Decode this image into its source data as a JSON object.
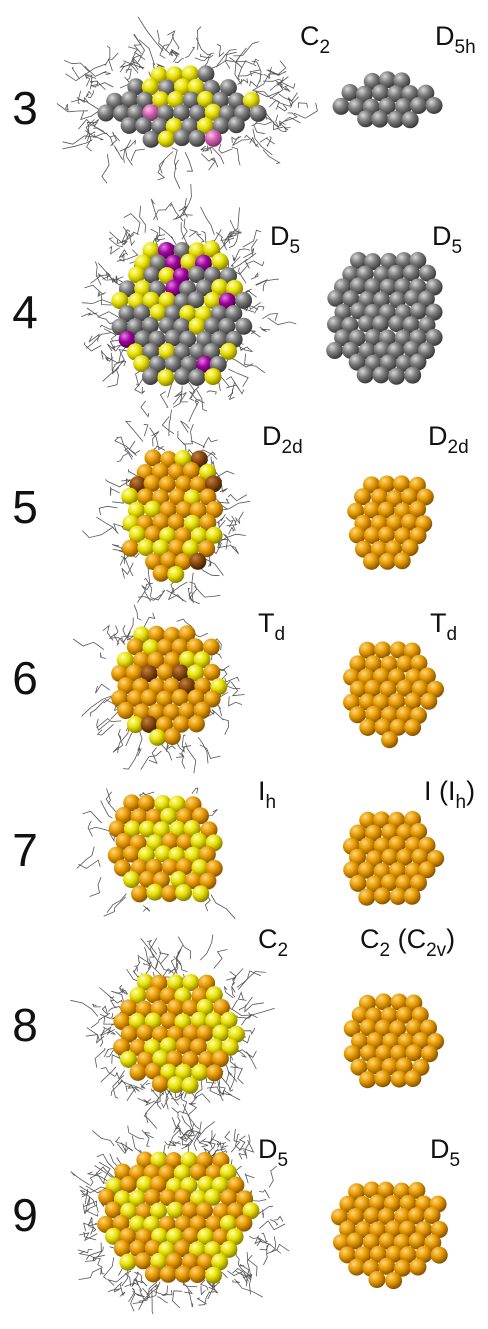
{
  "rows": [
    {
      "number": "3",
      "left": [
        {
          "text": "C"
        },
        {
          "sub": "2"
        }
      ],
      "right": [
        {
          "text": "D"
        },
        {
          "sub": "5h"
        }
      ]
    },
    {
      "number": "4",
      "left": [
        {
          "text": "D"
        },
        {
          "sub": "5"
        }
      ],
      "right": [
        {
          "text": "D"
        },
        {
          "sub": "5"
        }
      ]
    },
    {
      "number": "5",
      "left": [
        {
          "text": "D"
        },
        {
          "sub": "2d"
        }
      ],
      "right": [
        {
          "text": "D"
        },
        {
          "sub": "2d"
        }
      ]
    },
    {
      "number": "6",
      "left": [
        {
          "text": "T"
        },
        {
          "sub": "d"
        }
      ],
      "right": [
        {
          "text": "T"
        },
        {
          "sub": "d"
        }
      ]
    },
    {
      "number": "7",
      "left": [
        {
          "text": "I"
        },
        {
          "sub": "h"
        }
      ],
      "right": [
        {
          "text": "I (I"
        },
        {
          "sub": "h"
        },
        {
          "text": ")"
        }
      ]
    },
    {
      "number": "8",
      "left": [
        {
          "text": "C"
        },
        {
          "sub": "2"
        }
      ],
      "right": [
        {
          "text": "C"
        },
        {
          "sub": "2"
        },
        {
          "text": " (C"
        },
        {
          "sub": "2v"
        },
        {
          "text": ")"
        }
      ]
    },
    {
      "number": "9",
      "left": [
        {
          "text": "D"
        },
        {
          "sub": "5"
        }
      ],
      "right": [
        {
          "text": "D"
        },
        {
          "sub": "5"
        }
      ]
    }
  ]
}
